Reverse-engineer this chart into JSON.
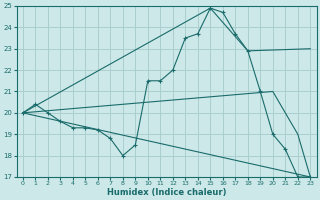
{
  "xlabel": "Humidex (Indice chaleur)",
  "background_color": "#cce8e8",
  "grid_color": "#aacece",
  "line_color": "#1a6b6b",
  "xlim_min": -0.5,
  "xlim_max": 23.5,
  "ylim_min": 17,
  "ylim_max": 25,
  "yticks": [
    17,
    18,
    19,
    20,
    21,
    22,
    23,
    24,
    25
  ],
  "xticks": [
    0,
    1,
    2,
    3,
    4,
    5,
    6,
    7,
    8,
    9,
    10,
    11,
    12,
    13,
    14,
    15,
    16,
    17,
    18,
    19,
    20,
    21,
    22,
    23
  ],
  "jagged_x": [
    0,
    1,
    2,
    3,
    4,
    5,
    6,
    7,
    8,
    9,
    10,
    11,
    12,
    13,
    14,
    15,
    16,
    17,
    18,
    19,
    20,
    21,
    22,
    23
  ],
  "jagged_y": [
    20.0,
    20.4,
    20.0,
    19.6,
    19.3,
    19.3,
    19.2,
    18.8,
    18.0,
    18.5,
    21.5,
    21.5,
    22.0,
    23.5,
    23.7,
    24.9,
    24.7,
    23.7,
    22.9,
    21.0,
    19.0,
    18.3,
    17.0,
    17.0
  ],
  "upper_line_x": [
    0,
    15,
    18,
    23
  ],
  "upper_line_y": [
    20.0,
    24.9,
    22.9,
    23.0
  ],
  "lower_line_x": [
    0,
    20,
    22,
    23
  ],
  "lower_line_y": [
    20.0,
    21.0,
    19.0,
    17.0
  ],
  "mid_line_x": [
    0,
    23
  ],
  "mid_line_y": [
    20.0,
    17.0
  ]
}
